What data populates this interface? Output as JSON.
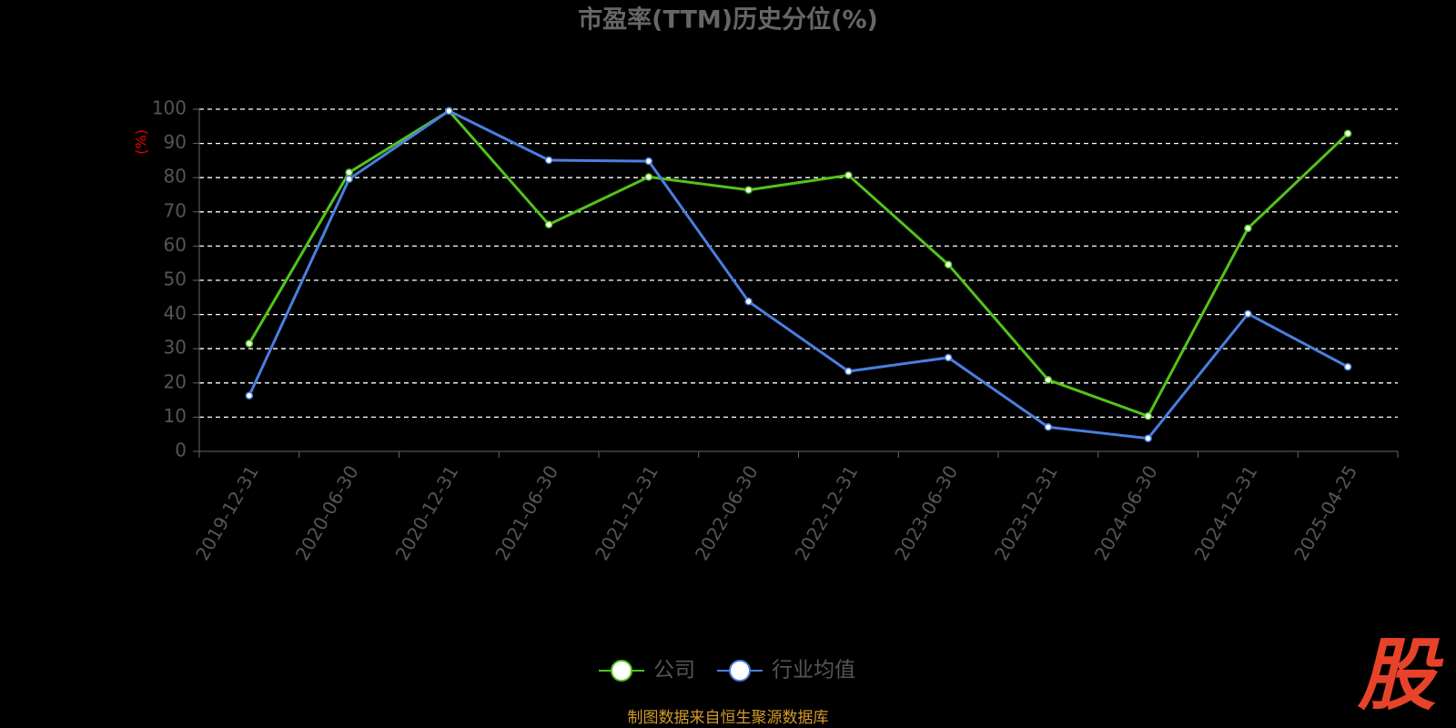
{
  "chart_data": {
    "type": "line",
    "title": "市盈率(TTM)历史分位(%)",
    "y_label": "(%)",
    "categories": [
      "2019-12-31",
      "2020-06-30",
      "2020-12-31",
      "2021-06-30",
      "2021-12-31",
      "2022-06-30",
      "2022-12-31",
      "2023-06-30",
      "2023-12-31",
      "2024-06-30",
      "2024-12-31",
      "2025-04-25"
    ],
    "series": [
      {
        "name": "公司",
        "color": "#52c41a",
        "values": [
          31.5,
          81.5,
          99.5,
          66.3,
          80.2,
          76.4,
          80.7,
          54.6,
          20.9,
          10.3,
          65.2,
          92.9
        ]
      },
      {
        "name": "行业均值",
        "color": "#4a7fe0",
        "values": [
          16.3,
          79.6,
          99.5,
          85.1,
          84.8,
          43.8,
          23.4,
          27.4,
          7.1,
          3.8,
          40.2,
          24.7
        ]
      }
    ],
    "ylim": [
      0,
      100
    ],
    "yticks": [
      0,
      10,
      20,
      30,
      40,
      50,
      60,
      70,
      80,
      90,
      100
    ],
    "grid": true,
    "legend": "bottom",
    "source": "制图数据来自恒生聚源数据库",
    "watermark": "股"
  }
}
